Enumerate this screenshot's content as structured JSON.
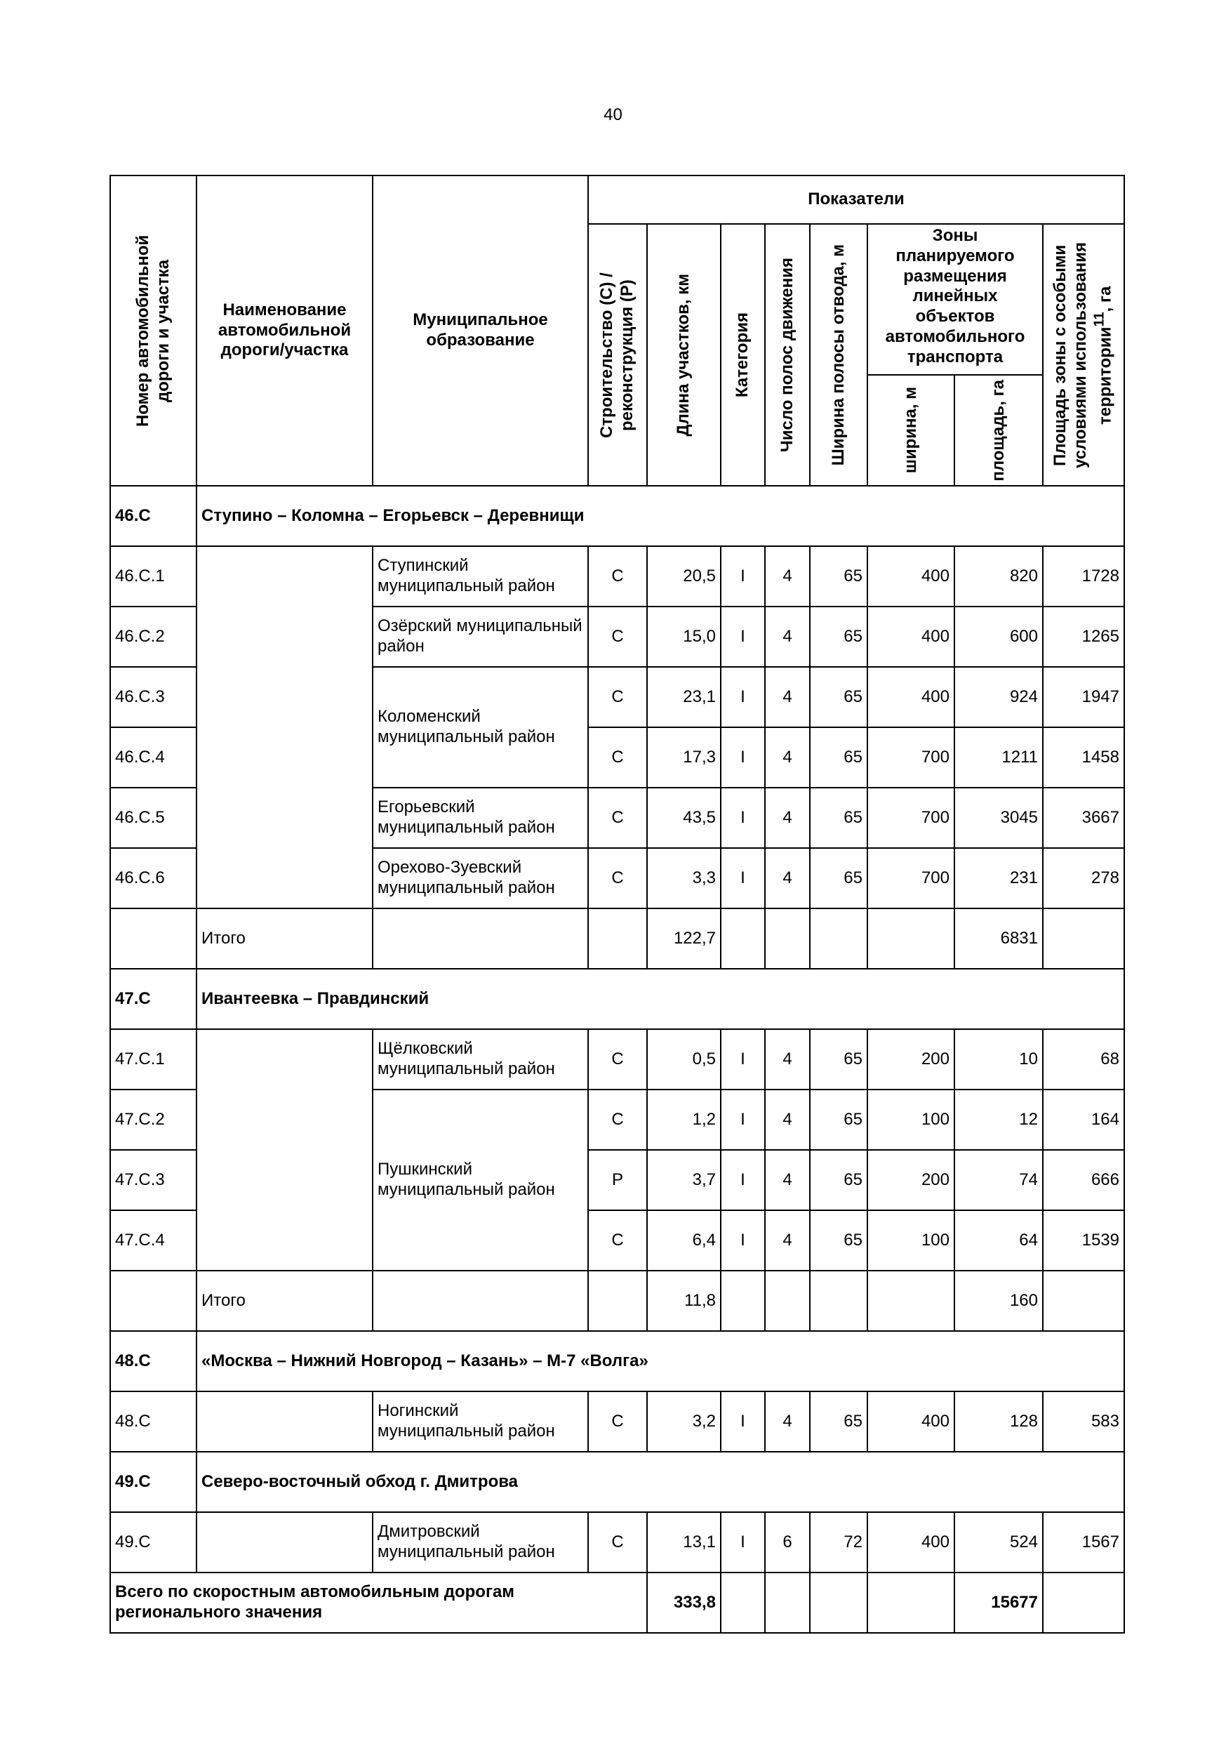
{
  "page_number": "40",
  "header": {
    "road_number": "Номер автомобильной дороги и участка",
    "road_name": "Наименование автомобильной дороги/участка",
    "municipality": "Муниципальное образование",
    "indicators": "Показатели",
    "construction": "Строительство (С) / реконструкция (Р)",
    "length": "Длина участков, км",
    "category": "Категория",
    "lanes": "Число полос движения",
    "row_width": "Ширина полосы отвода, м",
    "zones": "Зоны планируемого размещения линейных объектов автомобильного транспорта",
    "zone_width": "ширина, м",
    "zone_area": "площадь, га",
    "special_area": "Площадь зоны с особыми условиями использования территории",
    "special_area_sup": "11",
    "special_area_unit": ", га"
  },
  "sections": [
    {
      "code": "46.С",
      "name": "Ступино – Коломна – Егорьевск – Деревнищи",
      "rows": [
        {
          "code": "46.С.1",
          "municipality": "Ступинский муниципальный район",
          "type": "С",
          "length": "20,5",
          "category": "I",
          "lanes": "4",
          "row_width": "65",
          "zone_width": "400",
          "zone_area": "820",
          "special_area": "1728"
        },
        {
          "code": "46.С.2",
          "municipality": "Озёрский муниципальный район",
          "type": "С",
          "length": "15,0",
          "category": "I",
          "lanes": "4",
          "row_width": "65",
          "zone_width": "400",
          "zone_area": "600",
          "special_area": "1265"
        },
        {
          "code": "46.С.3",
          "municipality": "Коломенский муниципальный район",
          "type": "С",
          "length": "23,1",
          "category": "I",
          "lanes": "4",
          "row_width": "65",
          "zone_width": "400",
          "zone_area": "924",
          "special_area": "1947"
        },
        {
          "code": "46.С.4",
          "municipality": "Коломенский муниципальный район",
          "type": "С",
          "length": "17,3",
          "category": "I",
          "lanes": "4",
          "row_width": "65",
          "zone_width": "700",
          "zone_area": "1211",
          "special_area": "1458"
        },
        {
          "code": "46.С.5",
          "municipality": "Егорьевский муниципальный район",
          "type": "С",
          "length": "43,5",
          "category": "I",
          "lanes": "4",
          "row_width": "65",
          "zone_width": "700",
          "zone_area": "3045",
          "special_area": "3667"
        },
        {
          "code": "46.С.6",
          "municipality": "Орехово-Зуевский муниципальный район",
          "type": "С",
          "length": "3,3",
          "category": "I",
          "lanes": "4",
          "row_width": "65",
          "zone_width": "700",
          "zone_area": "231",
          "special_area": "278"
        }
      ],
      "total": {
        "label": "Итого",
        "length": "122,7",
        "zone_area": "6831"
      }
    },
    {
      "code": "47.С",
      "name": "Ивантеевка – Правдинский",
      "rows": [
        {
          "code": "47.С.1",
          "municipality": "Щёлковский муниципальный район",
          "type": "С",
          "length": "0,5",
          "category": "I",
          "lanes": "4",
          "row_width": "65",
          "zone_width": "200",
          "zone_area": "10",
          "special_area": "68"
        },
        {
          "code": "47.С.2",
          "municipality": "Пушкинский муниципальный район",
          "type": "С",
          "length": "1,2",
          "category": "I",
          "lanes": "4",
          "row_width": "65",
          "zone_width": "100",
          "zone_area": "12",
          "special_area": "164"
        },
        {
          "code": "47.С.3",
          "municipality": "Пушкинский муниципальный район",
          "type": "Р",
          "length": "3,7",
          "category": "I",
          "lanes": "4",
          "row_width": "65",
          "zone_width": "200",
          "zone_area": "74",
          "special_area": "666"
        },
        {
          "code": "47.С.4",
          "municipality": "Пушкинский муниципальный район",
          "type": "С",
          "length": "6,4",
          "category": "I",
          "lanes": "4",
          "row_width": "65",
          "zone_width": "100",
          "zone_area": "64",
          "special_area": "1539"
        }
      ],
      "total": {
        "label": "Итого",
        "length": "11,8",
        "zone_area": "160"
      }
    },
    {
      "code": "48.С",
      "name": "«Москва – Нижний Новгород – Казань» – М-7 «Волга»",
      "rows": [
        {
          "code": "48.С",
          "municipality": "Ногинский муниципальный район",
          "type": "С",
          "length": "3,2",
          "category": "I",
          "lanes": "4",
          "row_width": "65",
          "zone_width": "400",
          "zone_area": "128",
          "special_area": "583"
        }
      ]
    },
    {
      "code": "49.С",
      "name": "Северо-восточный обход г. Дмитрова",
      "rows": [
        {
          "code": "49.С",
          "municipality": "Дмитровский муниципальный район",
          "type": "С",
          "length": "13,1",
          "category": "I",
          "lanes": "6",
          "row_width": "72",
          "zone_width": "400",
          "zone_area": "524",
          "special_area": "1567"
        }
      ]
    }
  ],
  "grand_total": {
    "label": "Всего по скоростным автомобильным дорогам регионального значения",
    "length": "333,8",
    "zone_area": "15677"
  }
}
